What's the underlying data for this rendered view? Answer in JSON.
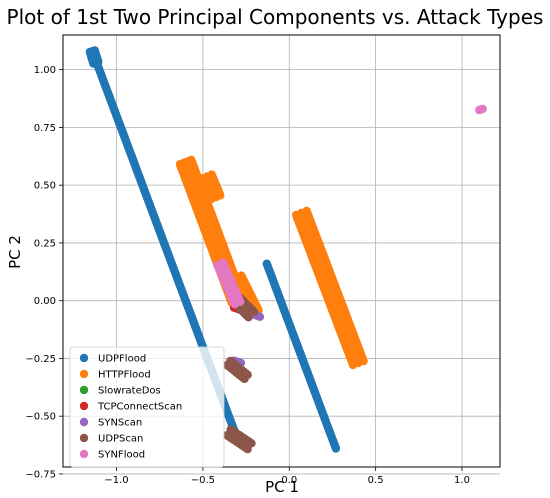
{
  "chart_data": {
    "type": "scatter",
    "title": "Plot of 1st Two Principal Components vs. Attack Types",
    "xlabel": "PC 1",
    "ylabel": "PC 2",
    "xlim": [
      -1.31,
      1.22
    ],
    "ylim": [
      -0.72,
      1.15
    ],
    "x_ticks": [
      -1.0,
      -0.5,
      0.0,
      0.5,
      1.0
    ],
    "x_tick_labels": [
      "−1.0",
      "−0.5",
      "0.0",
      "0.5",
      "1.0"
    ],
    "y_ticks": [
      -0.75,
      -0.5,
      -0.25,
      0.0,
      0.25,
      0.5,
      0.75,
      1.0
    ],
    "y_tick_labels": [
      "−0.75",
      "−0.50",
      "−0.25",
      "0.00",
      "0.25",
      "0.50",
      "0.75",
      "1.00"
    ],
    "grid": true,
    "legend_position": "lower-left",
    "series": [
      {
        "name": "UDPFlood",
        "color": "#1f77b4",
        "segments": [
          {
            "from": [
              -1.14,
              1.08
            ],
            "to": [
              -0.32,
              -0.56
            ],
            "width": 0.012
          },
          {
            "from": [
              -0.13,
              0.16
            ],
            "to": [
              0.27,
              -0.64
            ],
            "width": 0.012
          },
          {
            "from": [
              -1.14,
              1.08
            ],
            "to": [
              -1.12,
              1.03
            ],
            "width": 0.03
          }
        ]
      },
      {
        "name": "HTTPFlood",
        "color": "#ff7f0e",
        "segments": [
          {
            "from": [
              -0.6,
              0.6
            ],
            "to": [
              -0.3,
              0.0
            ],
            "width": 0.07
          },
          {
            "from": [
              0.07,
              0.38
            ],
            "to": [
              0.4,
              -0.27
            ],
            "width": 0.065
          },
          {
            "from": [
              -0.5,
              0.53
            ],
            "to": [
              -0.45,
              0.44
            ],
            "width": 0.11
          },
          {
            "from": [
              -0.3,
              0.1
            ],
            "to": [
              -0.2,
              -0.05
            ],
            "width": 0.05
          }
        ]
      },
      {
        "name": "SlowrateDos",
        "color": "#2ca02c",
        "segments": [
          {
            "from": [
              -0.28,
              -0.02
            ],
            "to": [
              -0.22,
              -0.05
            ],
            "width": 0.01
          }
        ]
      },
      {
        "name": "TCPConnectScan",
        "color": "#d62728",
        "segments": [
          {
            "from": [
              -0.32,
              -0.03
            ],
            "to": [
              -0.2,
              -0.06
            ],
            "width": 0.02
          }
        ]
      },
      {
        "name": "SYNScan",
        "color": "#9467bd",
        "segments": [
          {
            "from": [
              -0.32,
              -0.26
            ],
            "to": [
              -0.28,
              -0.27
            ],
            "width": 0.02
          },
          {
            "from": [
              -0.27,
              -0.04
            ],
            "to": [
              -0.17,
              -0.07
            ],
            "width": 0.02
          }
        ]
      },
      {
        "name": "UDPScan",
        "color": "#8c564b",
        "segments": [
          {
            "from": [
              -0.3,
              0.0
            ],
            "to": [
              -0.22,
              -0.06
            ],
            "width": 0.045
          },
          {
            "from": [
              -0.35,
              -0.27
            ],
            "to": [
              -0.25,
              -0.33
            ],
            "width": 0.03
          },
          {
            "from": [
              -0.35,
              -0.57
            ],
            "to": [
              -0.23,
              -0.63
            ],
            "width": 0.04
          }
        ]
      },
      {
        "name": "SYNFlood",
        "color": "#e377c2",
        "segments": [
          {
            "from": [
              -0.4,
              0.16
            ],
            "to": [
              -0.3,
              -0.01
            ],
            "width": 0.035
          },
          {
            "from": [
              1.1,
              0.825
            ],
            "to": [
              1.12,
              0.83
            ],
            "width": 0.01
          }
        ]
      }
    ]
  }
}
